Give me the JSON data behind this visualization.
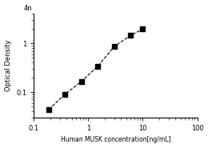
{
  "x_data": [
    0.188,
    0.375,
    0.75,
    1.5,
    3.0,
    6.0,
    10.0
  ],
  "y_data": [
    0.044,
    0.09,
    0.165,
    0.34,
    0.86,
    1.45,
    1.95
  ],
  "xlabel": "Human MUSK concentration[ng/mL]",
  "ylabel": "Optical Density",
  "xlim": [
    0.1,
    100
  ],
  "ylim": [
    0.03,
    4
  ],
  "xticks": [
    0.1,
    1,
    10,
    100
  ],
  "xtick_labels": [
    "0.1",
    "1",
    "10",
    "100"
  ],
  "yticks": [
    0.1,
    1
  ],
  "ytick_labels": [
    "0.1",
    "1"
  ],
  "top_tick_label": "4n",
  "marker": "s",
  "marker_color": "black",
  "marker_size": 4,
  "line_style": "--",
  "line_color": "black",
  "line_width": 0.8,
  "xlabel_fontsize": 5.5,
  "ylabel_fontsize": 6,
  "tick_fontsize": 6,
  "background_color": "#ffffff"
}
